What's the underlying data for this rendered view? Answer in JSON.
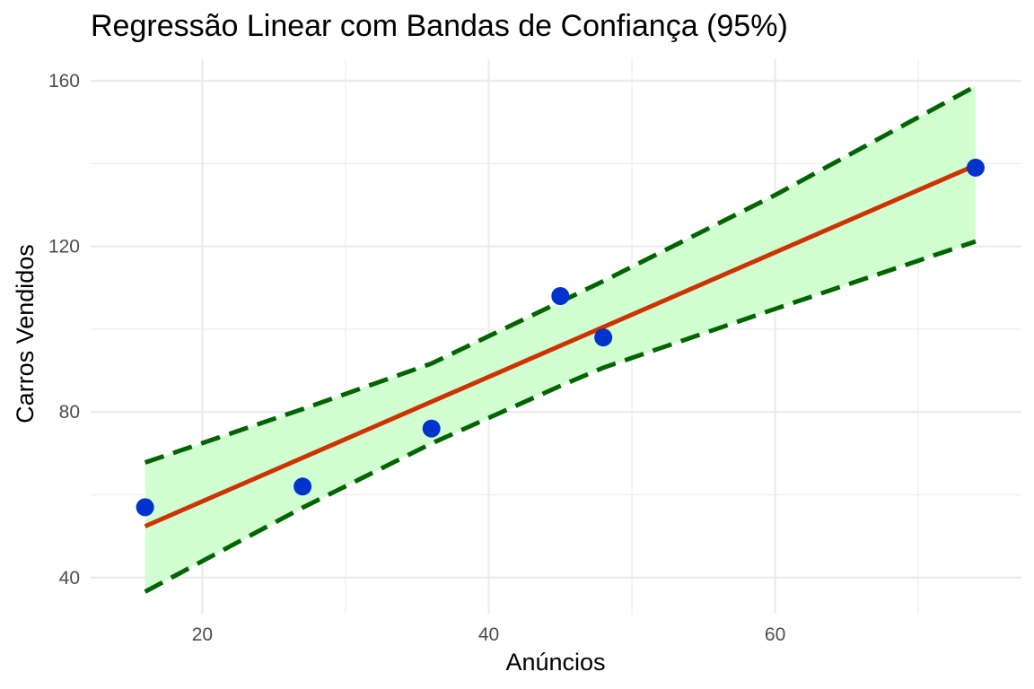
{
  "chart_data": {
    "type": "scatter",
    "title": "Regressão Linear com Bandas de Confiança (95%)",
    "xlabel": "Anúncios",
    "ylabel": "Carros Vendidos",
    "xlim": [
      12.2,
      77.2
    ],
    "ylim": [
      31.3,
      165.2
    ],
    "x_ticks": [
      20,
      40,
      60
    ],
    "x_tick_labels": [
      "20",
      "40",
      "60"
    ],
    "x_minor": [
      30,
      50,
      70
    ],
    "y_ticks": [
      40,
      80,
      120,
      160
    ],
    "y_tick_labels": [
      "40",
      "80",
      "120",
      "160"
    ],
    "y_minor": [
      60,
      100,
      140
    ],
    "grid": true,
    "series": [
      {
        "kind": "points",
        "x": [
          16,
          27,
          36,
          45,
          48,
          74
        ],
        "y": [
          57,
          62,
          76,
          108,
          98,
          139
        ],
        "color": "#0033cc"
      },
      {
        "kind": "regression_line",
        "x": [
          16,
          74
        ],
        "y": [
          52.4,
          139.6
        ],
        "color": "#cc3300"
      },
      {
        "kind": "confidence_band",
        "x": [
          16,
          27,
          36,
          45,
          48,
          60,
          74
        ],
        "lower": [
          36.6,
          56.9,
          72.4,
          86.3,
          90.7,
          104.9,
          121.2
        ],
        "upper": [
          67.8,
          80.7,
          91.7,
          106.6,
          111.6,
          132.4,
          158.7
        ],
        "fill": "#ccffcc",
        "line_color": "#006400"
      }
    ]
  }
}
